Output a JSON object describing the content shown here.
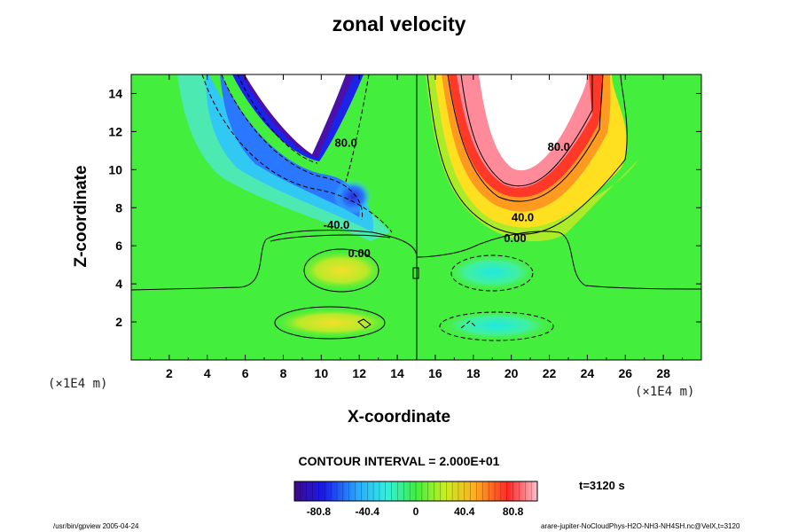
{
  "chart_data": {
    "type": "heatmap",
    "title": "zonal velocity",
    "xlabel": "X-coordinate",
    "ylabel": "Z-coordinate",
    "x_unit": "(×1E4 m)",
    "y_unit": "(×1E4 m)",
    "xlim": [
      0,
      30
    ],
    "ylim": [
      0,
      15
    ],
    "x_ticks": [
      2,
      4,
      6,
      8,
      10,
      12,
      14,
      16,
      18,
      20,
      22,
      24,
      26,
      28
    ],
    "y_ticks": [
      2,
      4,
      6,
      8,
      10,
      12,
      14
    ],
    "contour_labels": [
      {
        "text": "80.0",
        "x": 11.3,
        "z": 11.2
      },
      {
        "text": "-40.0",
        "x": 10.8,
        "z": 6.9
      },
      {
        "text": "0.00",
        "x": 12.0,
        "z": 5.4
      },
      {
        "text": "80.0",
        "x": 22.5,
        "z": 11.0
      },
      {
        "text": "40.0",
        "x": 20.6,
        "z": 7.3
      },
      {
        "text": "0.00",
        "x": 20.2,
        "z": 6.2
      }
    ],
    "colorbar": {
      "ticks": [
        "-80.8",
        "-40.4",
        "0",
        "40.4",
        "80.8"
      ],
      "tick_values": [
        -80.8,
        -40.4,
        0,
        40.4,
        80.8
      ],
      "range": [
        -101,
        101
      ]
    },
    "contour_interval": "CONTOUR INTERVAL = 2.000E+01",
    "time": "t=3120 s",
    "colors": {
      "neg_extreme": "#3a0a8a",
      "negative": "#1f4fff",
      "near_zero": "#33ee33",
      "positive": "#ff3030",
      "pos_extreme": "#ffb0c0"
    }
  },
  "footer": {
    "left": "/usr/bin/gpview 2005-04-24",
    "right": "arare-jupiter-NoCloudPhys-H2O-NH3-NH4SH.nc@VelX,t=3120"
  }
}
